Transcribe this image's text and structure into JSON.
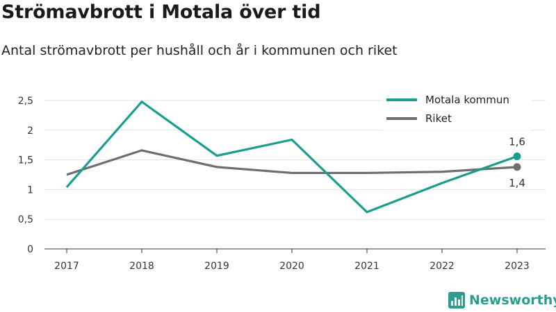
{
  "title": "Strömavbrott i Motala över tid",
  "subtitle": "Antal strömavbrott per hushåll och år i kommunen och riket",
  "brand": "Newsworthy",
  "chart_data": {
    "type": "line",
    "x": [
      "2017",
      "2018",
      "2019",
      "2020",
      "2021",
      "2022",
      "2023"
    ],
    "ylim": [
      0,
      2.5
    ],
    "yticks": [
      0,
      0.5,
      1,
      1.5,
      2,
      2.5
    ],
    "ytick_labels": [
      "0",
      "0,5",
      "1",
      "1,5",
      "2",
      "2,5"
    ],
    "grid": true,
    "legend_position": "top-right",
    "series": [
      {
        "name": "Motala kommun",
        "color": "#1a9e8f",
        "values": [
          1.04,
          2.48,
          1.57,
          1.84,
          0.62,
          1.11,
          1.56
        ],
        "end_label": "1,6"
      },
      {
        "name": "Riket",
        "color": "#6e6d73",
        "values": [
          1.25,
          1.66,
          1.38,
          1.28,
          1.28,
          1.3,
          1.38
        ],
        "end_label": "1,4"
      }
    ]
  }
}
